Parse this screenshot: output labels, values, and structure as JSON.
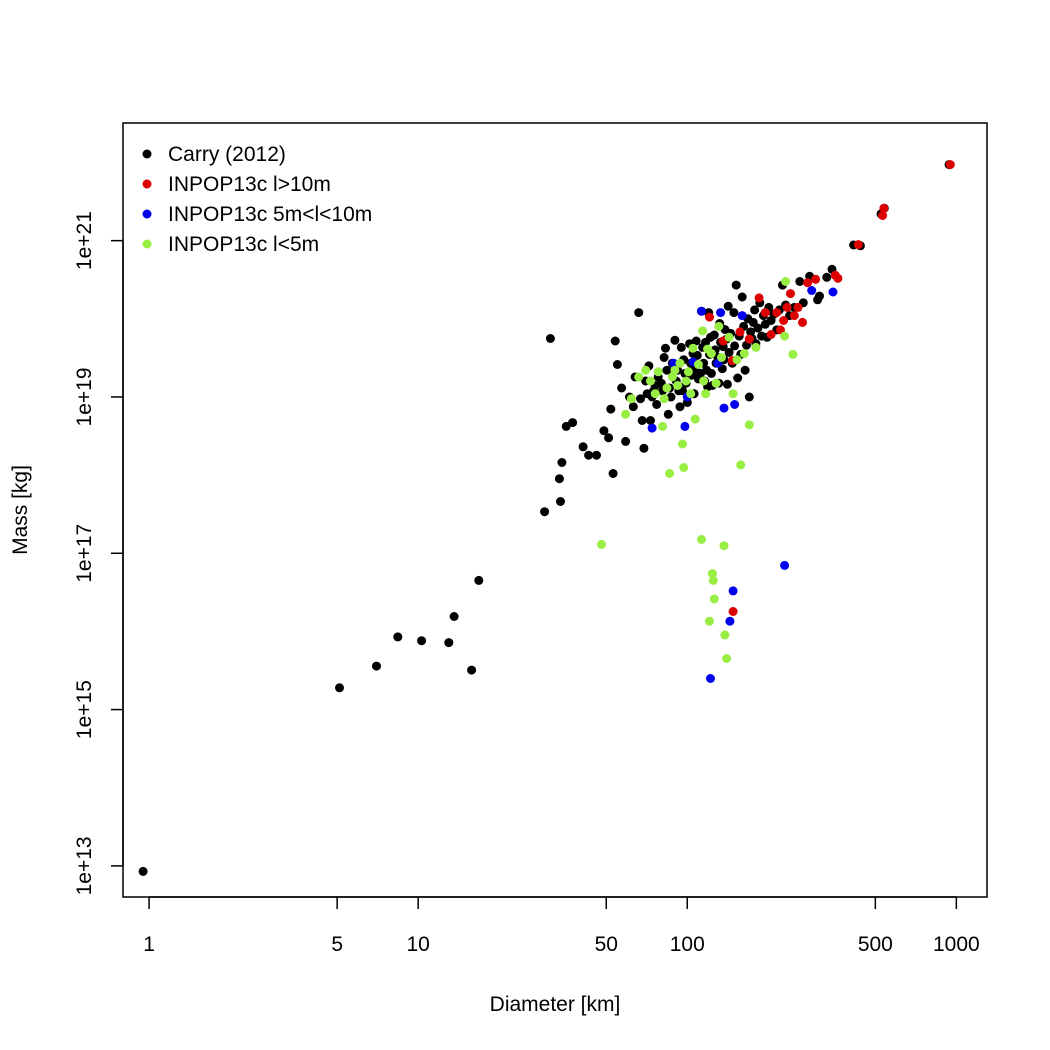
{
  "chart_data": {
    "type": "scatter",
    "xlabel": "Diameter [km]",
    "ylabel": "Mass [kg]",
    "x_scale": "log",
    "y_scale": "log",
    "xlim": [
      0.8,
      1300
    ],
    "ylim": [
      4000000000000.0,
      3.2e+22
    ],
    "x_ticks": [
      {
        "value": 1,
        "label": "1"
      },
      {
        "value": 5,
        "label": "5"
      },
      {
        "value": 10,
        "label": "10"
      },
      {
        "value": 50,
        "label": "50"
      },
      {
        "value": 100,
        "label": "100"
      },
      {
        "value": 500,
        "label": "500"
      },
      {
        "value": 1000,
        "label": "1000"
      }
    ],
    "y_ticks": [
      {
        "value": 10000000000000.0,
        "label": "1e+13"
      },
      {
        "value": 1000000000000000.0,
        "label": "1e+15"
      },
      {
        "value": 1e+17,
        "label": "1e+17"
      },
      {
        "value": 1e+19,
        "label": "1e+19"
      },
      {
        "value": 1e+21,
        "label": "1e+21"
      }
    ],
    "grid": false,
    "legend": "top-left",
    "series": [
      {
        "name": "Carry (2012)",
        "color": "#000000",
        "points": [
          [
            0.95,
            8500000000000.0
          ],
          [
            5.1,
            1900000000000000.0
          ],
          [
            7.0,
            3600000000000000.0
          ],
          [
            8.4,
            8500000000000000.0
          ],
          [
            10.3,
            7600000000000000.0
          ],
          [
            13.0,
            7200000000000000.0
          ],
          [
            13.6,
            1.55e+16
          ],
          [
            15.8,
            3200000000000000.0
          ],
          [
            16.8,
            4.5e+16
          ],
          [
            29.5,
            3.4e+17
          ],
          [
            31.0,
            5.6e+19
          ],
          [
            33.5,
            9e+17
          ],
          [
            33.8,
            4.6e+17
          ],
          [
            34.2,
            1.45e+18
          ],
          [
            35.5,
            4.2e+18
          ],
          [
            37.5,
            4.7e+18
          ],
          [
            41,
            2.3e+18
          ],
          [
            43,
            1.8e+18
          ],
          [
            46,
            1.8e+18
          ],
          [
            49,
            3.7e+18
          ],
          [
            51,
            3e+18
          ],
          [
            52,
            7e+18
          ],
          [
            53,
            1.05e+18
          ],
          [
            54,
            5.2e+19
          ],
          [
            55,
            2.6e+19
          ],
          [
            57,
            1.3e+19
          ],
          [
            59,
            2.7e+18
          ],
          [
            61,
            1e+19
          ],
          [
            63,
            7.5e+18
          ],
          [
            64,
            1.8e+19
          ],
          [
            66,
            1.2e+20
          ],
          [
            67,
            9.5e+18
          ],
          [
            68,
            5e+18
          ],
          [
            69,
            2.2e+18
          ],
          [
            70,
            1.6e+19
          ],
          [
            71,
            1.1e+19
          ],
          [
            72,
            2.5e+19
          ],
          [
            73,
            5e+18
          ],
          [
            74,
            1e+19
          ],
          [
            75,
            1.2e+19
          ],
          [
            76,
            1.4e+19
          ],
          [
            77,
            8e+18
          ],
          [
            78,
            1.8e+19
          ],
          [
            80,
            1.5e+19
          ],
          [
            81,
            1.2e+19
          ],
          [
            82,
            3.2e+19
          ],
          [
            83,
            4.2e+19
          ],
          [
            84,
            2.2e+19
          ],
          [
            85,
            6e+18
          ],
          [
            86,
            1.3e+19
          ],
          [
            87,
            1e+19
          ],
          [
            88,
            2.7e+19
          ],
          [
            90,
            5.3e+19
          ],
          [
            91,
            1.6e+19
          ],
          [
            92,
            2.2e+19
          ],
          [
            93,
            1.2e+19
          ],
          [
            94,
            7.5e+18
          ],
          [
            95,
            4.3e+19
          ],
          [
            96,
            1.2e+19
          ],
          [
            97,
            3e+19
          ],
          [
            98,
            2e+19
          ],
          [
            99,
            1.5e+19
          ],
          [
            100,
            8.5e+18
          ],
          [
            102,
            4.8e+19
          ],
          [
            103,
            2.7e+19
          ],
          [
            104,
            1.9e+19
          ],
          [
            105,
            3.6e+19
          ],
          [
            106,
            1.1e+19
          ],
          [
            107,
            2.3e+19
          ],
          [
            108,
            5.2e+19
          ],
          [
            109,
            3.4e+19
          ],
          [
            110,
            1.7e+19
          ],
          [
            112,
            2e+19
          ],
          [
            113,
            1.25e+20
          ],
          [
            114,
            4.3e+19
          ],
          [
            115,
            2.7e+19
          ],
          [
            116,
            1.6e+19
          ],
          [
            117,
            5e+19
          ],
          [
            118,
            2.2e+19
          ],
          [
            119,
            1.35e+19
          ],
          [
            120,
            1.2e+20
          ],
          [
            121,
            3.5e+19
          ],
          [
            122,
            5.8e+19
          ],
          [
            123,
            2e+19
          ],
          [
            124,
            1.4e+19
          ],
          [
            126,
            6.2e+19
          ],
          [
            127,
            4e+19
          ],
          [
            128,
            2.7e+19
          ],
          [
            130,
            3.2e+19
          ],
          [
            131,
            1.5e+19
          ],
          [
            132,
            8.7e+19
          ],
          [
            133,
            5e+19
          ],
          [
            135,
            2.3e+19
          ],
          [
            136,
            4.4e+19
          ],
          [
            137,
            3e+19
          ],
          [
            138,
            7.3e+19
          ],
          [
            140,
            5.5e+19
          ],
          [
            141,
            1.45e+19
          ],
          [
            142,
            1.45e+20
          ],
          [
            143,
            3.7e+19
          ],
          [
            145,
            6.5e+19
          ],
          [
            147,
            2.7e+19
          ],
          [
            149,
            1.2e+20
          ],
          [
            150,
            4.5e+19
          ],
          [
            152,
            2.7e+20
          ],
          [
            154,
            1.75e+19
          ],
          [
            156,
            6e+19
          ],
          [
            158,
            3.5e+19
          ],
          [
            160,
            1.9e+20
          ],
          [
            162,
            8e+19
          ],
          [
            164,
            2.2e+19
          ],
          [
            166,
            4.6e+19
          ],
          [
            168,
            1e+20
          ],
          [
            170,
            1e+19
          ],
          [
            172,
            6.8e+19
          ],
          [
            174,
            5.6e+19
          ],
          [
            176,
            9e+19
          ],
          [
            178,
            1.3e+20
          ],
          [
            180,
            4.8e+19
          ],
          [
            183,
            7.6e+19
          ],
          [
            186,
            1.6e+20
          ],
          [
            189,
            6e+19
          ],
          [
            192,
            1.1e+20
          ],
          [
            195,
            8.5e+19
          ],
          [
            198,
            5.8e+19
          ],
          [
            201,
            1.4e+20
          ],
          [
            205,
            9.5e+19
          ],
          [
            210,
            1.15e+20
          ],
          [
            215,
            7.2e+19
          ],
          [
            220,
            1.3e+20
          ],
          [
            226,
            2.7e+20
          ],
          [
            232,
            1.5e+20
          ],
          [
            240,
            1.1e+20
          ],
          [
            250,
            1.4e+20
          ],
          [
            262,
            3e+20
          ],
          [
            270,
            1.6e+20
          ],
          [
            285,
            3.5e+20
          ],
          [
            305,
            1.75e+20
          ],
          [
            310,
            1.95e+20
          ],
          [
            330,
            3.4e+20
          ],
          [
            345,
            4.3e+20
          ],
          [
            415,
            8.8e+20
          ],
          [
            440,
            8.6e+20
          ],
          [
            525,
            2.2e+21
          ],
          [
            540,
            2.6e+21
          ],
          [
            940,
            9.4e+21
          ]
        ]
      },
      {
        "name": "INPOP13c l>10m",
        "color": "#dd0000",
        "points": [
          [
            121,
            1.05e+20
          ],
          [
            136,
            5.2e+19
          ],
          [
            147,
            2.9e+19
          ],
          [
            148,
            1.8e+16
          ],
          [
            157,
            6.8e+19
          ],
          [
            170,
            5.5e+19
          ],
          [
            185,
            1.85e+20
          ],
          [
            195,
            1.2e+20
          ],
          [
            205,
            6.3e+19
          ],
          [
            215,
            1.2e+20
          ],
          [
            222,
            7.2e+19
          ],
          [
            228,
            9.5e+19
          ],
          [
            235,
            1.4e+20
          ],
          [
            242,
            2.1e+20
          ],
          [
            250,
            1.1e+20
          ],
          [
            258,
            1.4e+20
          ],
          [
            268,
            9e+19
          ],
          [
            280,
            2.9e+20
          ],
          [
            300,
            3.2e+20
          ],
          [
            355,
            3.6e+20
          ],
          [
            363,
            3.3e+20
          ],
          [
            432,
            8.9e+20
          ],
          [
            532,
            2.1e+21
          ],
          [
            538,
            2.6e+21
          ],
          [
            950,
            9.4e+21
          ]
        ]
      },
      {
        "name": "INPOP13c 5m<l<10m",
        "color": "#0000ee",
        "points": [
          [
            74,
            4e+18
          ],
          [
            89,
            2.7e+19
          ],
          [
            98,
            4.2e+18
          ],
          [
            100,
            1e+19
          ],
          [
            105,
            2.8e+19
          ],
          [
            113,
            1.25e+20
          ],
          [
            122,
            2500000000000000.0
          ],
          [
            130,
            2.7e+19
          ],
          [
            133,
            1.2e+20
          ],
          [
            137,
            7.2e+18
          ],
          [
            144,
            1.35e+16
          ],
          [
            148,
            3.3e+16
          ],
          [
            150,
            8e+18
          ],
          [
            160,
            1.1e+20
          ],
          [
            230,
            7e+16
          ],
          [
            290,
            2.3e+20
          ],
          [
            348,
            2.2e+20
          ]
        ]
      },
      {
        "name": "INPOP13c l<5m",
        "color": "#99ee44",
        "points": [
          [
            48,
            1.3e+17
          ],
          [
            59,
            6e+18
          ],
          [
            62,
            9.5e+18
          ],
          [
            66,
            1.8e+19
          ],
          [
            70,
            2.2e+19
          ],
          [
            73,
            1.6e+19
          ],
          [
            76,
            1.1e+19
          ],
          [
            78,
            2.1e+19
          ],
          [
            81,
            4.2e+18
          ],
          [
            82,
            9.5e+18
          ],
          [
            84,
            1.3e+19
          ],
          [
            86,
            1.05e+18
          ],
          [
            88,
            1.8e+19
          ],
          [
            90,
            2.2e+19
          ],
          [
            92,
            1.4e+19
          ],
          [
            94,
            2.7e+19
          ],
          [
            96,
            2.5e+18
          ],
          [
            97,
            1.25e+18
          ],
          [
            99,
            1.6e+19
          ],
          [
            101,
            2.1e+19
          ],
          [
            103,
            1.1e+19
          ],
          [
            105,
            4.2e+19
          ],
          [
            107,
            5.2e+18
          ],
          [
            110,
            2.6e+19
          ],
          [
            113,
            1.5e+17
          ],
          [
            114,
            7e+19
          ],
          [
            115,
            1.6e+19
          ],
          [
            117,
            1.1e+19
          ],
          [
            119,
            4.1e+19
          ],
          [
            121,
            1.35e+16
          ],
          [
            123,
            3.6e+19
          ],
          [
            124,
            5.5e+16
          ],
          [
            125,
            4.5e+16
          ],
          [
            126,
            2.6e+16
          ],
          [
            128,
            1.5e+19
          ],
          [
            131,
            8e+19
          ],
          [
            134,
            3.2e+19
          ],
          [
            137,
            1.25e+17
          ],
          [
            138,
            9000000000000000.0
          ],
          [
            140,
            4500000000000000.0
          ],
          [
            143,
            5.8e+19
          ],
          [
            148,
            1.1e+19
          ],
          [
            153,
            3e+19
          ],
          [
            158,
            1.35e+18
          ],
          [
            163,
            3.6e+19
          ],
          [
            170,
            4.4e+18
          ],
          [
            180,
            4.3e+19
          ],
          [
            230,
            6e+19
          ],
          [
            232,
            3e+20
          ],
          [
            247,
            3.5e+19
          ]
        ]
      }
    ]
  }
}
